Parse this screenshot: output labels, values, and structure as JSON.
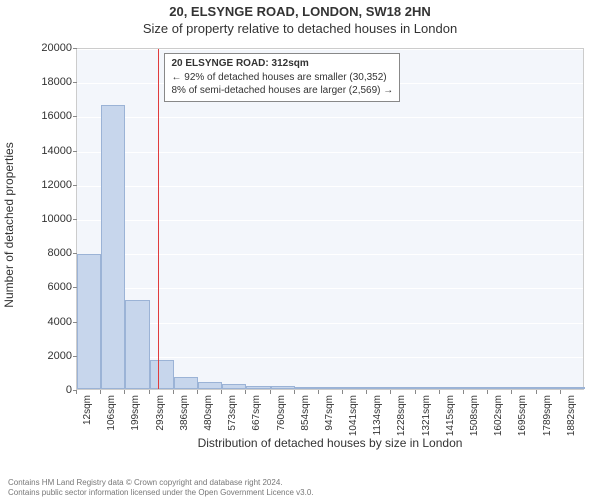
{
  "titles": {
    "main": "20, ELSYNGE ROAD, LONDON, SW18 2HN",
    "sub": "Size of property relative to detached houses in London"
  },
  "axes": {
    "ylabel": "Number of detached properties",
    "xlabel": "Distribution of detached houses by size in London",
    "ylim": [
      0,
      20000
    ],
    "ytick_step": 2000,
    "yticks": [
      0,
      2000,
      4000,
      6000,
      8000,
      10000,
      12000,
      14000,
      16000,
      18000,
      20000
    ]
  },
  "xticks": [
    "12sqm",
    "106sqm",
    "199sqm",
    "293sqm",
    "386sqm",
    "480sqm",
    "573sqm",
    "667sqm",
    "760sqm",
    "854sqm",
    "947sqm",
    "1041sqm",
    "1134sqm",
    "1228sqm",
    "1321sqm",
    "1415sqm",
    "1508sqm",
    "1602sqm",
    "1695sqm",
    "1789sqm",
    "1882sqm"
  ],
  "bars": {
    "count": 21,
    "values": [
      7900,
      16600,
      5200,
      1700,
      700,
      400,
      300,
      200,
      150,
      130,
      110,
      90,
      70,
      60,
      55,
      45,
      40,
      35,
      30,
      25,
      20
    ],
    "color": "#c7d6ec",
    "border": "#9bb3d6"
  },
  "reference": {
    "title": "20 ELSYNGE ROAD: 312sqm",
    "line1": "← 92% of detached houses are smaller (30,352)",
    "line2": "8% of semi-detached houses are larger (2,569) →",
    "line_color": "#e03c3c",
    "box_bg": "#ffffff",
    "box_border": "#888888"
  },
  "styling": {
    "plot_bg": "#f3f6fb",
    "grid_color": "#ffffff",
    "text_color": "#333333",
    "title_fontsize": 13,
    "label_fontsize": 12,
    "tick_fontsize": 11
  },
  "attribution": {
    "line1": "Contains HM Land Registry data © Crown copyright and database right 2024.",
    "line2": "Contains public sector information licensed under the Open Government Licence v3.0."
  }
}
